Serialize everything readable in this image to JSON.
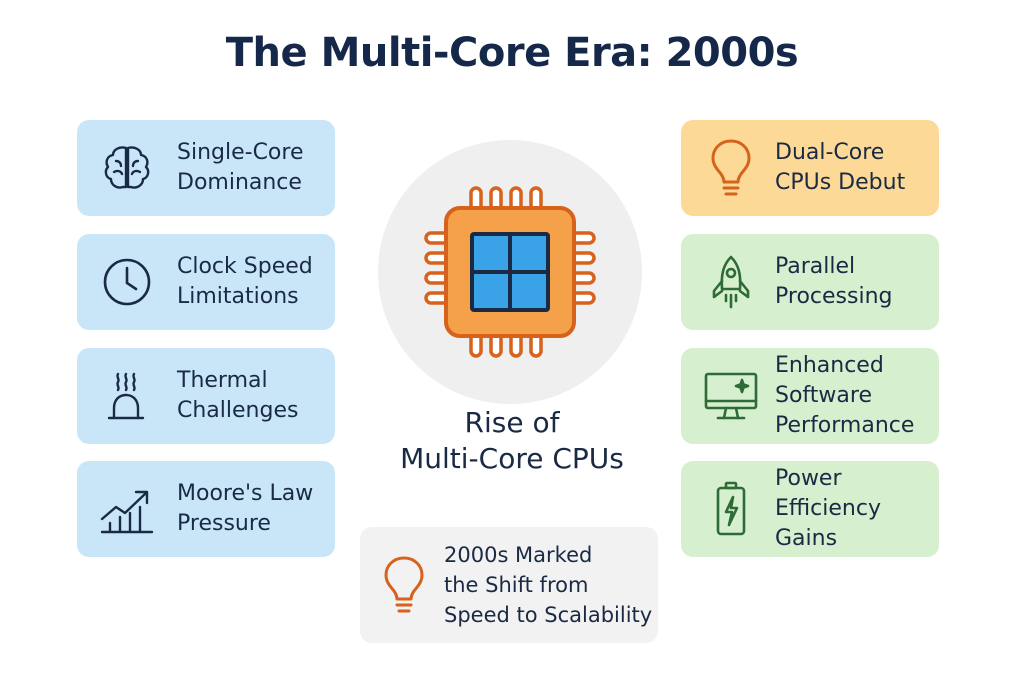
{
  "title": "The Multi-Core Era: 2000s",
  "center": {
    "label_line1": "Rise of",
    "label_line2": "Multi-Core CPUs",
    "icon": "cpu-chip-icon"
  },
  "left_cards": [
    {
      "line1": "Single-Core",
      "line2": "Dominance",
      "icon": "brain-icon"
    },
    {
      "line1": "Clock Speed",
      "line2": "Limitations",
      "icon": "clock-icon"
    },
    {
      "line1": "Thermal",
      "line2": "Challenges",
      "icon": "heat-icon"
    },
    {
      "line1": "Moore's Law",
      "line2": "Pressure",
      "icon": "growth-chart-icon"
    }
  ],
  "right_cards": [
    {
      "line1": "Dual-Core",
      "line2": "CPUs Debut",
      "icon": "lightbulb-icon"
    },
    {
      "line1": "Parallel",
      "line2": "Processing",
      "icon": "rocket-icon"
    },
    {
      "line1": "Enhanced",
      "line2": "Software",
      "line3": "Performance",
      "icon": "monitor-icon"
    },
    {
      "line1": "Power",
      "line2": "Efficiency",
      "line3": "Gains",
      "icon": "battery-icon"
    }
  ],
  "note": {
    "line1": "2000s Marked",
    "line2": "the Shift from",
    "line3": "Speed to Scalability",
    "icon": "lightbulb-icon"
  },
  "colors": {
    "title": "#15284a",
    "blue_card": "#c9e6f9",
    "green_card": "#d5efcf",
    "yellow_card": "#fcd996",
    "icon_navy": "#1b2a44",
    "icon_green": "#2f6b36",
    "icon_orange": "#d6621b",
    "chip_orange": "#f5a14a",
    "chip_blue": "#3aa3e8"
  }
}
